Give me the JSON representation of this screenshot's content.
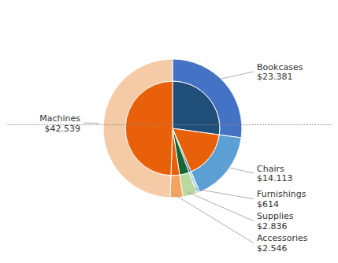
{
  "chart_data": {
    "type": "pie",
    "categories": [
      "Bookcases",
      "Chairs",
      "Furnishings",
      "Supplies",
      "Accessories",
      "Machines"
    ],
    "series": [
      {
        "values": [
          23.381,
          14.113,
          0.614,
          2.836,
          2.546,
          42.539
        ],
        "colors": [
          "#4472C4",
          "#5B9FD4",
          "#A8D4EC",
          "#B8D9A0",
          "#F4A460",
          "#F5CBA7"
        ]
      },
      {
        "values": [
          23.381,
          14.113,
          0.614,
          2.836,
          2.546,
          42.539
        ],
        "colors": [
          "#1F4E79",
          "#E8610A",
          "#2878B4",
          "#1A6632",
          "#E8610A",
          "#E8610A"
        ]
      }
    ],
    "value_labels": [
      "$23.381",
      "$14.113",
      "$614",
      "$2.836",
      "$2.546",
      "$42.539"
    ],
    "data_labels": true
  }
}
